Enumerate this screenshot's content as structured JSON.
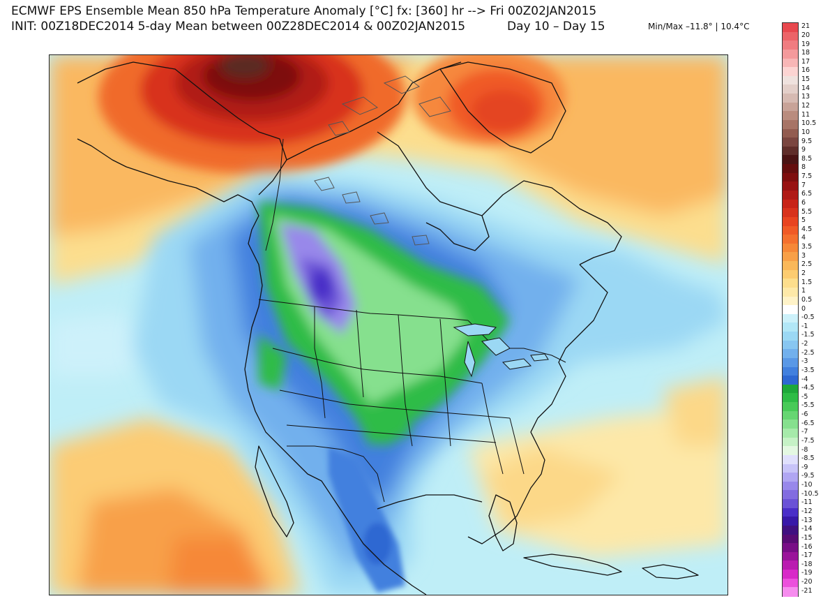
{
  "header": {
    "title_line1": "ECMWF EPS Ensemble Mean 850 hPa Temperature Anomaly [°C] fx: [360] hr --> Fri 00Z02JAN2015",
    "title_line2": "INIT: 00Z18DEC2014 5-day Mean between 00Z28DEC2014 & 00Z02JAN2015",
    "days": "Day 10 – Day 15",
    "minmax": "Min/Max –11.8° | 10.4°C"
  },
  "legend": {
    "levels": [
      "21",
      "20",
      "19",
      "18",
      "17",
      "16",
      "15",
      "14",
      "13",
      "12",
      "11",
      "10.5",
      "10",
      "9.5",
      "9",
      "8.5",
      "8",
      "7.5",
      "7",
      "6.5",
      "6",
      "5.5",
      "5",
      "4.5",
      "4",
      "3.5",
      "3",
      "2.5",
      "2",
      "1.5",
      "1",
      "0.5",
      "0",
      "-0.5",
      "-1",
      "-1.5",
      "-2",
      "-2.5",
      "-3",
      "-3.5",
      "-4",
      "-4.5",
      "-5",
      "-5.5",
      "-6",
      "-6.5",
      "-7",
      "-7.5",
      "-8",
      "-8.5",
      "-9",
      "-9.5",
      "-10",
      "-10.5",
      "-11",
      "-12",
      "-13",
      "-14",
      "-15",
      "-16",
      "-17",
      "-18",
      "-19",
      "-20",
      "-21"
    ],
    "colors": [
      "#e8484e",
      "#ec6468",
      "#f07c80",
      "#f49a9c",
      "#f8b6b6",
      "#fcd4d2",
      "#efe2de",
      "#e3cfc9",
      "#d6bab2",
      "#c8a398",
      "#b98c7e",
      "#a77466",
      "#925c50",
      "#7a4640",
      "#5f2e2a",
      "#4a1414",
      "#640e0e",
      "#7e0e0e",
      "#981212",
      "#b01a16",
      "#c82418",
      "#d8321c",
      "#e84420",
      "#f05a26",
      "#f4702e",
      "#f68838",
      "#f8a048",
      "#fab85a",
      "#fccc70",
      "#fdde8c",
      "#fee9a8",
      "#fff3c8",
      "#ffffff",
      "#cdf1fa",
      "#b2e7f7",
      "#9bd8f4",
      "#88c6f1",
      "#72b0ed",
      "#5a98e6",
      "#4280de",
      "#2e68d2",
      "#1ea83a",
      "#2ebc46",
      "#48ca58",
      "#66d672",
      "#86e08e",
      "#a6eaaa",
      "#c6f2c6",
      "#e4f8e2",
      "#e0e0fc",
      "#c8c4f8",
      "#b0a6f2",
      "#9888ea",
      "#826ce0",
      "#6a52d6",
      "#4a2ec8",
      "#3818a8",
      "#401080",
      "#580c74",
      "#780e86",
      "#9a149a",
      "#ba1cb0",
      "#d82ac8",
      "#ec50dc",
      "#f68cee"
    ]
  },
  "map": {
    "colors": {
      "ocean_base": "#bfeef7",
      "warm_extreme": "#5a2a24",
      "cold_core": "#6a52d6",
      "coast_line": "#111111"
    }
  }
}
